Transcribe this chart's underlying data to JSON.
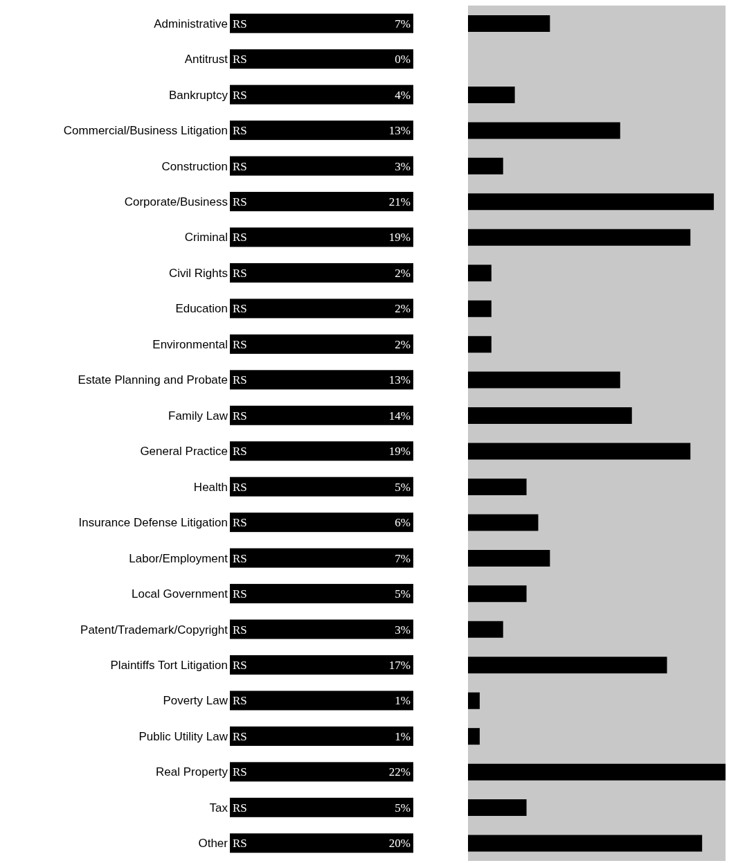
{
  "chart_data": {
    "type": "bar",
    "orientation": "horizontal",
    "categories": [
      "Administrative",
      "Antitrust",
      "Bankruptcy",
      "Commercial/Business Litigation",
      "Construction",
      "Corporate/Business",
      "Criminal",
      "Civil Rights",
      "Education",
      "Environmental",
      "Estate Planning and Probate",
      "Family Law",
      "General Practice",
      "Health",
      "Insurance Defense Litigation",
      "Labor/Employment",
      "Local Government",
      "Patent/Trademark/Copyright",
      "Plaintiffs Tort Litigation",
      "Poverty Law",
      "Public Utility Law",
      "Real Property",
      "Tax",
      "Other"
    ],
    "values": [
      7,
      0,
      4,
      13,
      3,
      21,
      19,
      2,
      2,
      2,
      13,
      14,
      19,
      5,
      6,
      7,
      5,
      3,
      17,
      1,
      1,
      22,
      5,
      20
    ],
    "value_labels": [
      "7%",
      "0%",
      "4%",
      "13%",
      "3%",
      "21%",
      "19%",
      "2%",
      "2%",
      "2%",
      "13%",
      "14%",
      "19%",
      "5%",
      "6%",
      "7%",
      "5%",
      "3%",
      "17%",
      "1%",
      "1%",
      "22%",
      "5%",
      "20%"
    ],
    "color": "#000000",
    "annotations": [
      "RS",
      "RS",
      "RS",
      "RS",
      "RS",
      "RS",
      "RS",
      "RS",
      "RS",
      "RS",
      "RS",
      "RS",
      "RS",
      "RS",
      "RS",
      "RS",
      "RS",
      "RS",
      "RS",
      "RS",
      "RS",
      "RS",
      "RS",
      "RS"
    ]
  }
}
